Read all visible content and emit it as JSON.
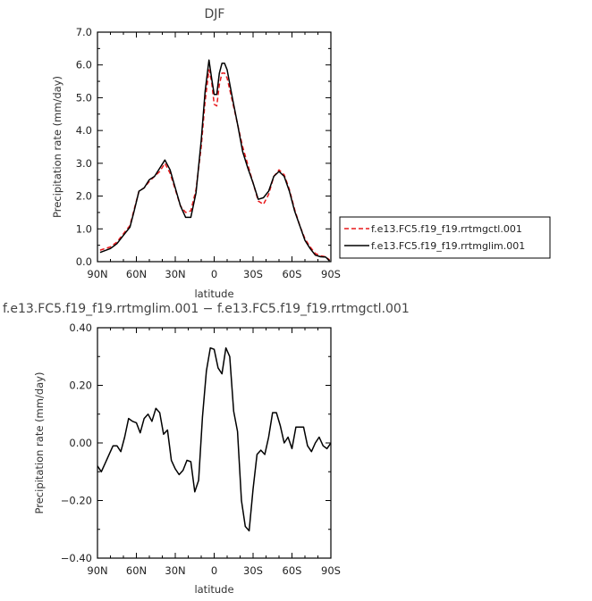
{
  "chart_data": [
    {
      "type": "line",
      "title": "DJF",
      "xlabel": "latitude",
      "ylabel": "Precipitation rate (mm/day)",
      "xlim": [
        90,
        -90
      ],
      "ylim": [
        0.0,
        7.0
      ],
      "xticks": [
        90,
        60,
        30,
        0,
        -30,
        -60,
        -90
      ],
      "xtick_labels": [
        "90N",
        "60N",
        "30N",
        "0",
        "30S",
        "60S",
        "90S"
      ],
      "yticks": [
        0.0,
        1.0,
        2.0,
        3.0,
        4.0,
        5.0,
        6.0,
        7.0
      ],
      "ytick_labels": [
        "0.0",
        "1.0",
        "2.0",
        "3.0",
        "4.0",
        "5.0",
        "6.0",
        "7.0"
      ],
      "grid": false,
      "legend": "right, outside plot",
      "series": [
        {
          "name": "f.e13.FC5.f19_f19.rrtmgctl.001",
          "color": "#e8191c",
          "dash": "dashed",
          "x": [
            88,
            80,
            75,
            70,
            65,
            62,
            58,
            54,
            50,
            46,
            42,
            38,
            34,
            30,
            26,
            22,
            18,
            14,
            10,
            7,
            4,
            2,
            0,
            -2,
            -4,
            -6,
            -8,
            -10,
            -14,
            -18,
            -22,
            -26,
            -30,
            -34,
            -38,
            -42,
            -46,
            -50,
            -54,
            -58,
            -62,
            -66,
            -70,
            -74,
            -78,
            -82,
            -86,
            -89
          ],
          "y": [
            0.35,
            0.45,
            0.6,
            0.85,
            1.1,
            1.55,
            2.15,
            2.25,
            2.45,
            2.6,
            2.75,
            3.0,
            2.7,
            2.2,
            1.7,
            1.5,
            1.55,
            2.2,
            3.5,
            4.9,
            5.85,
            5.5,
            4.8,
            4.75,
            5.4,
            5.75,
            5.75,
            5.6,
            4.9,
            4.2,
            3.5,
            2.95,
            2.4,
            1.85,
            1.75,
            2.05,
            2.6,
            2.8,
            2.65,
            2.2,
            1.6,
            1.1,
            0.7,
            0.45,
            0.25,
            0.18,
            0.15,
            0.05
          ]
        },
        {
          "name": "f.e13.FC5.f19_f19.rrtmglim.001",
          "color": "#000000",
          "dash": "solid",
          "x": [
            88,
            80,
            75,
            70,
            65,
            62,
            58,
            54,
            50,
            46,
            42,
            38,
            34,
            30,
            26,
            22,
            18,
            14,
            10,
            7,
            4,
            2,
            0,
            -2,
            -4,
            -6,
            -8,
            -10,
            -14,
            -18,
            -22,
            -26,
            -30,
            -34,
            -38,
            -42,
            -46,
            -50,
            -54,
            -58,
            -62,
            -66,
            -70,
            -74,
            -78,
            -82,
            -86,
            -89
          ],
          "y": [
            0.28,
            0.4,
            0.55,
            0.8,
            1.05,
            1.5,
            2.15,
            2.25,
            2.5,
            2.6,
            2.85,
            3.1,
            2.8,
            2.25,
            1.7,
            1.35,
            1.35,
            2.1,
            3.7,
            5.2,
            6.15,
            5.6,
            5.1,
            5.1,
            5.75,
            6.05,
            6.05,
            5.85,
            5.0,
            4.2,
            3.35,
            2.85,
            2.4,
            1.9,
            1.95,
            2.15,
            2.6,
            2.75,
            2.6,
            2.15,
            1.55,
            1.1,
            0.65,
            0.4,
            0.2,
            0.15,
            0.14,
            0.02
          ]
        }
      ]
    },
    {
      "type": "line",
      "title": "f.e13.FC5.f19_f19.rrtmglim.001 − f.e13.FC5.f19_f19.rrtmgctl.001",
      "xlabel": "latitude",
      "ylabel": "Precipitation rate (mm/day)",
      "xlim": [
        90,
        -90
      ],
      "ylim": [
        -0.4,
        0.4
      ],
      "xticks": [
        90,
        60,
        30,
        0,
        -30,
        -60,
        -90
      ],
      "xtick_labels": [
        "90N",
        "60N",
        "30N",
        "0",
        "30S",
        "60S",
        "90S"
      ],
      "yticks": [
        -0.4,
        -0.2,
        0.0,
        0.2,
        0.4
      ],
      "ytick_labels": [
        "−0.40",
        "−0.20",
        "0.00",
        "0.20",
        "0.40"
      ],
      "grid": false,
      "series": [
        {
          "color": "#000000",
          "dash": "solid",
          "x": [
            90,
            87,
            84,
            81,
            78,
            75,
            72,
            69,
            66,
            63,
            60,
            57,
            54,
            51,
            48,
            45,
            42,
            39,
            36,
            33,
            30,
            27,
            24,
            21,
            18,
            15,
            12,
            9,
            6,
            3,
            0,
            -3,
            -6,
            -9,
            -12,
            -15,
            -18,
            -21,
            -24,
            -27,
            -30,
            -33,
            -36,
            -39,
            -42,
            -45,
            -48,
            -51,
            -54,
            -57,
            -60,
            -63,
            -66,
            -69,
            -72,
            -75,
            -78,
            -81,
            -84,
            -87,
            -90
          ],
          "y": [
            -0.08,
            -0.1,
            -0.07,
            -0.04,
            -0.01,
            -0.01,
            -0.03,
            0.02,
            0.085,
            0.075,
            0.07,
            0.035,
            0.085,
            0.1,
            0.075,
            0.12,
            0.105,
            0.03,
            0.045,
            -0.06,
            -0.09,
            -0.11,
            -0.095,
            -0.06,
            -0.065,
            -0.17,
            -0.13,
            0.09,
            0.25,
            0.33,
            0.325,
            0.26,
            0.24,
            0.33,
            0.3,
            0.11,
            0.04,
            -0.2,
            -0.29,
            -0.305,
            -0.16,
            -0.04,
            -0.025,
            -0.04,
            0.02,
            0.105,
            0.105,
            0.06,
            0.0,
            0.02,
            -0.02,
            0.055,
            0.055,
            0.055,
            -0.01,
            -0.03,
            0.0,
            0.02,
            -0.01,
            -0.02,
            0.0
          ]
        }
      ]
    }
  ]
}
